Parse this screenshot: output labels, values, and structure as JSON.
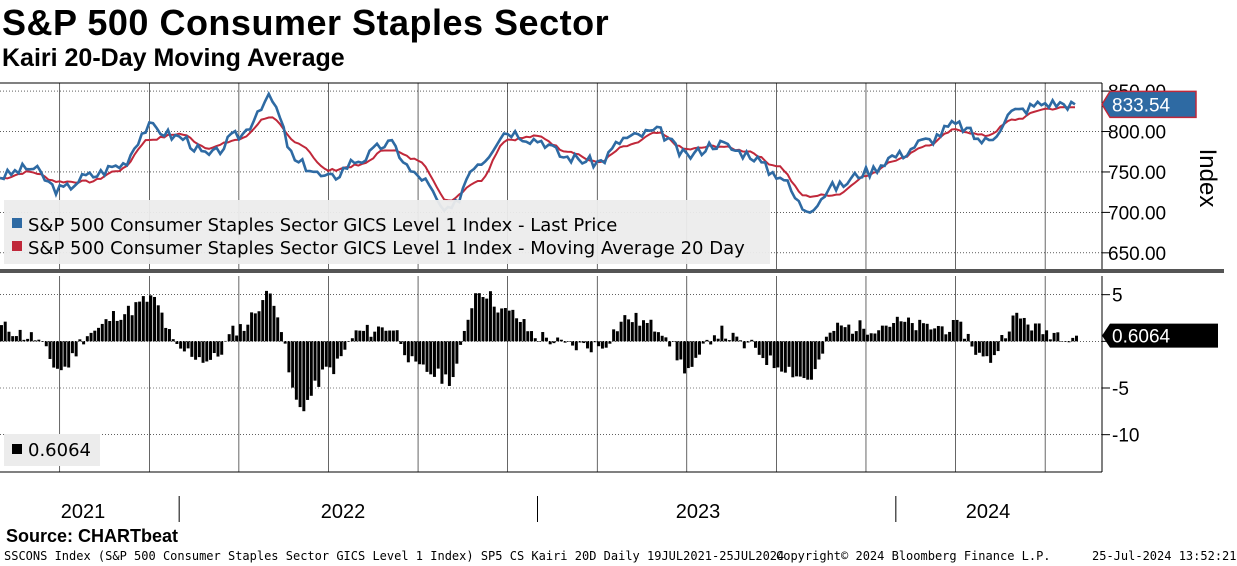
{
  "header": {
    "title": "S&P 500 Consumer Staples Sector",
    "subtitle": "Kairi 20-Day Moving Average"
  },
  "source": "Source: CHARTbeat",
  "footer": {
    "left": "SSCONS Index (S&P 500 Consumer Staples Sector GICS Level 1 Index) SP5 CS Kairi 20D  Daily 19JUL2021-25JUL2024",
    "mid": "Copyright© 2024 Bloomberg Finance L.P.",
    "right": "25-Jul-2024 13:52:21"
  },
  "colors": {
    "price": "#2e6aa3",
    "ma": "#c0283a",
    "kairi": "#000000",
    "grid": "#000000",
    "legend_bg": "#ececec"
  },
  "chart_data": [
    {
      "type": "line",
      "panel": "top",
      "ylabel": "Index",
      "ylim": [
        630,
        860
      ],
      "yticks": [
        "650.00",
        "700.00",
        "750.00",
        "800.00",
        "850.00"
      ],
      "last_value_label": "833.54",
      "legend": [
        "S&P 500 Consumer Staples Sector GICS Level 1 Index - Last Price",
        "S&P 500 Consumer Staples Sector GICS Level 1 Index - Moving Average 20 Day"
      ],
      "x_labels": [
        "2021",
        "2022",
        "2023",
        "2024"
      ],
      "x": [
        "2021-07",
        "2021-08",
        "2021-09",
        "2021-10",
        "2021-11",
        "2021-12",
        "2022-01",
        "2022-02",
        "2022-03",
        "2022-04",
        "2022-05",
        "2022-06",
        "2022-07",
        "2022-08",
        "2022-09",
        "2022-10",
        "2022-11",
        "2022-12",
        "2023-01",
        "2023-02",
        "2023-03",
        "2023-04",
        "2023-05",
        "2023-06",
        "2023-07",
        "2023-08",
        "2023-09",
        "2023-10",
        "2023-11",
        "2023-12",
        "2024-01",
        "2024-02",
        "2024-03",
        "2024-04",
        "2024-05",
        "2024-06",
        "2024-07"
      ],
      "series": [
        {
          "name": "S&P 500 Consumer Staples Sector GICS Level 1 Index - Last Price",
          "values": [
            745,
            755,
            728,
            745,
            758,
            805,
            793,
            770,
            795,
            840,
            760,
            742,
            765,
            785,
            745,
            700,
            762,
            800,
            790,
            768,
            762,
            792,
            800,
            770,
            785,
            773,
            748,
            705,
            732,
            750,
            770,
            788,
            808,
            788,
            825,
            835,
            833.54
          ]
        },
        {
          "name": "S&P 500 Consumer Staples Sector GICS Level 1 Index - Moving Average 20 Day",
          "values": [
            742,
            750,
            738,
            738,
            752,
            790,
            797,
            780,
            790,
            818,
            785,
            752,
            758,
            778,
            765,
            715,
            738,
            790,
            794,
            776,
            762,
            782,
            798,
            778,
            782,
            776,
            758,
            720,
            722,
            745,
            765,
            782,
            802,
            795,
            815,
            828,
            830
          ]
        }
      ]
    },
    {
      "type": "bar",
      "panel": "bottom",
      "ylim": [
        -14,
        7
      ],
      "yticks": [
        "5",
        "0",
        "-5",
        "-10"
      ],
      "last_value_label": "0.6064",
      "legend": [
        "0.6064"
      ],
      "x": [
        "2021-07",
        "2021-08",
        "2021-09",
        "2021-10",
        "2021-11",
        "2021-12",
        "2022-01",
        "2022-02",
        "2022-03",
        "2022-04",
        "2022-05",
        "2022-06",
        "2022-07",
        "2022-08",
        "2022-09",
        "2022-10",
        "2022-11",
        "2022-12",
        "2023-01",
        "2023-02",
        "2023-03",
        "2023-04",
        "2023-05",
        "2023-06",
        "2023-07",
        "2023-08",
        "2023-09",
        "2023-10",
        "2023-11",
        "2023-12",
        "2024-01",
        "2024-02",
        "2024-03",
        "2024-04",
        "2024-05",
        "2024-06",
        "2024-07"
      ],
      "values": [
        1.5,
        0.5,
        -3,
        1,
        3,
        4.5,
        -1,
        -2,
        1.5,
        5,
        -7,
        -3,
        1,
        1.5,
        -3,
        -4,
        5.5,
        3,
        0.5,
        -0.5,
        -0.5,
        2.5,
        1.5,
        -3,
        1,
        -0.5,
        -2.5,
        -4,
        1.5,
        1.5,
        2,
        1.5,
        1.5,
        -2,
        2.5,
        1,
        0.6064
      ]
    }
  ]
}
